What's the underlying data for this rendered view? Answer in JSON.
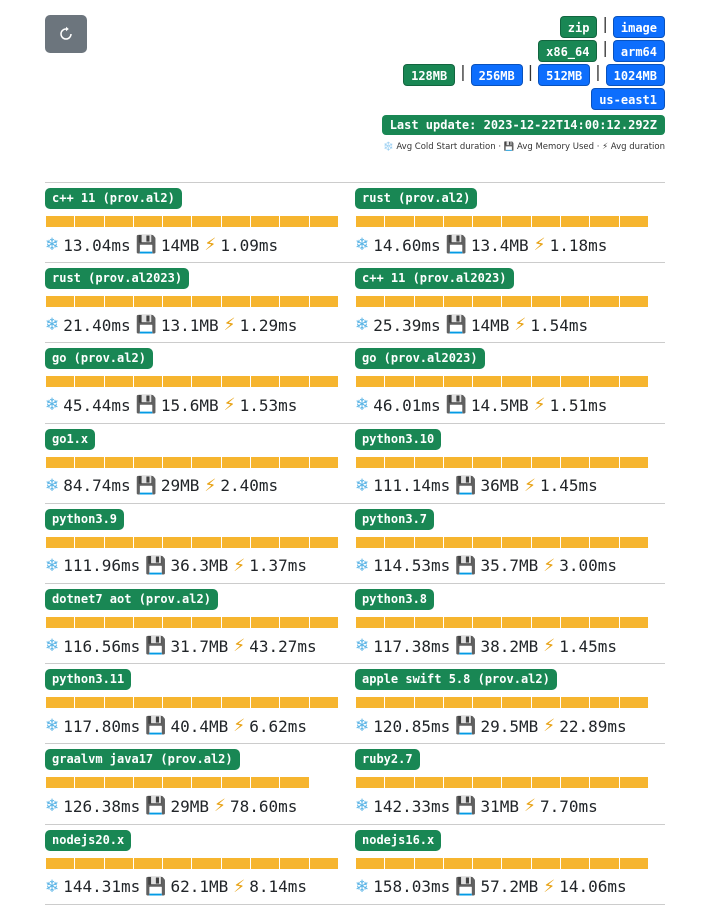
{
  "header": {
    "refresh_icon": "refresh-icon",
    "package_types": [
      {
        "label": "zip",
        "color": "#198754"
      },
      {
        "label": "image",
        "color": "#0d6efd"
      }
    ],
    "architectures": [
      {
        "label": "x86_64",
        "color": "#198754"
      },
      {
        "label": "arm64",
        "color": "#0d6efd"
      }
    ],
    "memory_sizes": [
      {
        "label": "128MB",
        "color": "#198754"
      },
      {
        "label": "256MB",
        "color": "#0d6efd"
      },
      {
        "label": "512MB",
        "color": "#0d6efd"
      },
      {
        "label": "1024MB",
        "color": "#0d6efd"
      }
    ],
    "regions": [
      {
        "label": "us-east1",
        "color": "#0d6efd"
      }
    ],
    "separator": "|",
    "last_update": "Last update: 2023-12-22T14:00:12.292Z",
    "legend": "❄️ Avg Cold Start duration · 💾 Avg Memory Used · ⚡ Avg duration"
  },
  "runtimes": [
    {
      "name": "c++ 11 (prov.al2)",
      "cold": "13.04ms",
      "memory": "14MB",
      "duration": "1.09ms",
      "bar_fraction": 1.0
    },
    {
      "name": "rust (prov.al2)",
      "cold": "14.60ms",
      "memory": "13.4MB",
      "duration": "1.18ms",
      "bar_fraction": 1.0
    },
    {
      "name": "rust (prov.al2023)",
      "cold": "21.40ms",
      "memory": "13.1MB",
      "duration": "1.29ms",
      "bar_fraction": 1.0
    },
    {
      "name": "c++ 11 (prov.al2023)",
      "cold": "25.39ms",
      "memory": "14MB",
      "duration": "1.54ms",
      "bar_fraction": 1.0
    },
    {
      "name": "go (prov.al2)",
      "cold": "45.44ms",
      "memory": "15.6MB",
      "duration": "1.53ms",
      "bar_fraction": 1.0
    },
    {
      "name": "go (prov.al2023)",
      "cold": "46.01ms",
      "memory": "14.5MB",
      "duration": "1.51ms",
      "bar_fraction": 1.0
    },
    {
      "name": "go1.x",
      "cold": "84.74ms",
      "memory": "29MB",
      "duration": "2.40ms",
      "bar_fraction": 1.0
    },
    {
      "name": "python3.10",
      "cold": "111.14ms",
      "memory": "36MB",
      "duration": "1.45ms",
      "bar_fraction": 1.0
    },
    {
      "name": "python3.9",
      "cold": "111.96ms",
      "memory": "36.3MB",
      "duration": "1.37ms",
      "bar_fraction": 1.0
    },
    {
      "name": "python3.7",
      "cold": "114.53ms",
      "memory": "35.7MB",
      "duration": "3.00ms",
      "bar_fraction": 1.0
    },
    {
      "name": "dotnet7 aot (prov.al2)",
      "cold": "116.56ms",
      "memory": "31.7MB",
      "duration": "43.27ms",
      "bar_fraction": 1.0
    },
    {
      "name": "python3.8",
      "cold": "117.38ms",
      "memory": "38.2MB",
      "duration": "1.45ms",
      "bar_fraction": 1.0
    },
    {
      "name": "python3.11",
      "cold": "117.80ms",
      "memory": "40.4MB",
      "duration": "6.62ms",
      "bar_fraction": 1.0
    },
    {
      "name": "apple swift 5.8 (prov.al2)",
      "cold": "120.85ms",
      "memory": "29.5MB",
      "duration": "22.89ms",
      "bar_fraction": 1.0
    },
    {
      "name": "graalvm java17 (prov.al2)",
      "cold": "126.38ms",
      "memory": "29MB",
      "duration": "78.60ms",
      "bar_fraction": 0.9
    },
    {
      "name": "ruby2.7",
      "cold": "142.33ms",
      "memory": "31MB",
      "duration": "7.70ms",
      "bar_fraction": 1.0
    },
    {
      "name": "nodejs20.x",
      "cold": "144.31ms",
      "memory": "62.1MB",
      "duration": "8.14ms",
      "bar_fraction": 1.0
    },
    {
      "name": "nodejs16.x",
      "cold": "158.03ms",
      "memory": "57.2MB",
      "duration": "14.06ms",
      "bar_fraction": 1.0
    }
  ]
}
